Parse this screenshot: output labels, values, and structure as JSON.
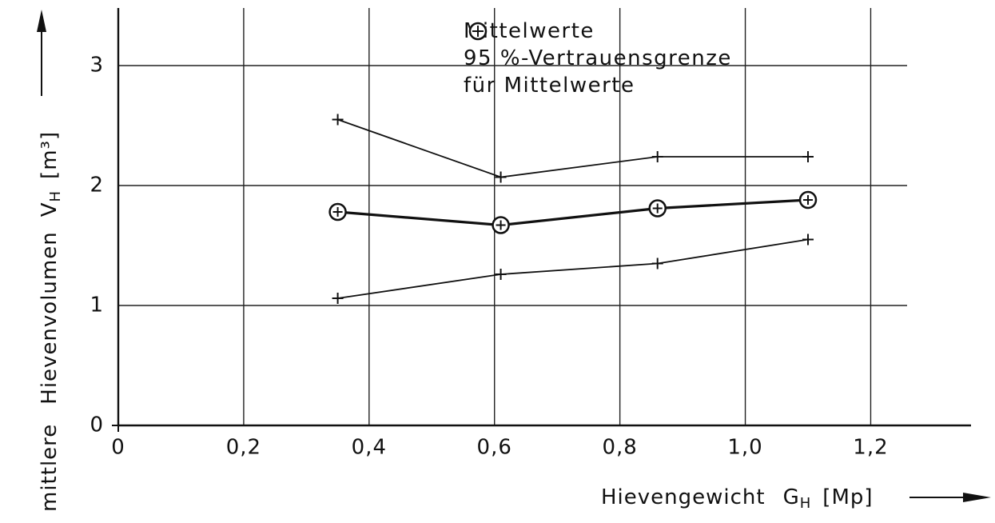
{
  "chart_data": {
    "type": "line",
    "ylabel_prefix": "mittlere",
    "ylabel": "Hievenvolumen",
    "ylabel_symbol": "V",
    "ylabel_subscript": "H",
    "ylabel_unit": "[m³]",
    "xlabel": "Hievengewicht",
    "xlabel_symbol": "G",
    "xlabel_subscript": "H",
    "xlabel_unit": "[Mp]",
    "x": [
      0.35,
      0.61,
      0.86,
      1.1
    ],
    "series": [
      {
        "name": "Mittelwerte",
        "color": "#111111",
        "marker": "circle-plus",
        "values": [
          1.78,
          1.67,
          1.81,
          1.88
        ]
      },
      {
        "name": "95 %-Vertrauensgrenze für Mittelwerte",
        "color": "#111111",
        "marker": "plus",
        "values": [
          2.55,
          2.07,
          2.24,
          2.24
        ]
      },
      {
        "color": "#111111",
        "marker": "plus",
        "values": [
          1.06,
          1.26,
          1.35,
          1.55
        ]
      }
    ],
    "xlim": [
      0,
      1.36
    ],
    "ylim": [
      0,
      3.48
    ],
    "xticks": [
      0,
      {
        "value": 0.2,
        "label": "0,2"
      },
      {
        "value": 0.4,
        "label": "0,4"
      },
      {
        "value": 0.6,
        "label": "0,6"
      },
      {
        "value": 0.8,
        "label": "0,8"
      },
      {
        "value": 1.0,
        "label": "1,0"
      },
      {
        "value": 1.2,
        "label": "1,2"
      }
    ],
    "yticks": [
      0,
      1,
      2,
      3
    ],
    "grid": true
  }
}
